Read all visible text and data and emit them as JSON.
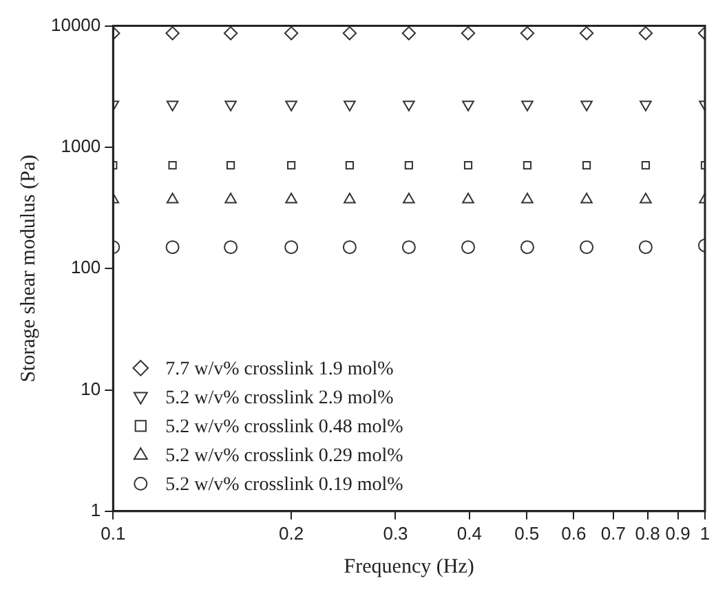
{
  "chart_data": {
    "type": "scatter",
    "xlabel": "Frequency (Hz)",
    "ylabel": "Storage shear modulus (Pa)",
    "x": [
      0.1,
      0.126,
      0.158,
      0.2,
      0.251,
      0.316,
      0.398,
      0.501,
      0.631,
      0.794,
      1.0
    ],
    "series": [
      {
        "name": "7.7 w/v% crosslink 1.9 mol%",
        "color": "#333333",
        "marker": "diamond",
        "values": [
          8700,
          8700,
          8700,
          8700,
          8700,
          8700,
          8700,
          8700,
          8700,
          8700,
          8700
        ]
      },
      {
        "name": "5.2 w/v% crosslink 2.9 mol%",
        "color": "#333333",
        "marker": "triangle-down",
        "values": [
          2250,
          2250,
          2250,
          2250,
          2250,
          2250,
          2250,
          2250,
          2250,
          2250,
          2250
        ]
      },
      {
        "name": "5.2 w/v% crosslink 0.48 mol%",
        "color": "#333333",
        "marker": "square",
        "values": [
          710,
          710,
          710,
          710,
          710,
          710,
          710,
          710,
          710,
          710,
          710
        ]
      },
      {
        "name": "5.2 w/v% crosslink 0.29 mol%",
        "color": "#333333",
        "marker": "triangle",
        "values": [
          370,
          370,
          370,
          370,
          370,
          370,
          370,
          370,
          370,
          370,
          370
        ]
      },
      {
        "name": "5.2 w/v% crosslink 0.19 mol%",
        "color": "#333333",
        "marker": "circle",
        "values": [
          150,
          150,
          150,
          150,
          150,
          150,
          150,
          150,
          150,
          150,
          155
        ]
      }
    ],
    "log": "xy",
    "xlim": [
      0.1,
      1
    ],
    "ylim": [
      1,
      10000
    ],
    "xticks": [
      0.1,
      0.2,
      0.3,
      0.4,
      0.5,
      0.6,
      0.7,
      0.8,
      0.9,
      1
    ],
    "yticks": [
      1,
      10,
      100,
      1000,
      10000
    ],
    "grid": false,
    "legend": "bottom left"
  }
}
